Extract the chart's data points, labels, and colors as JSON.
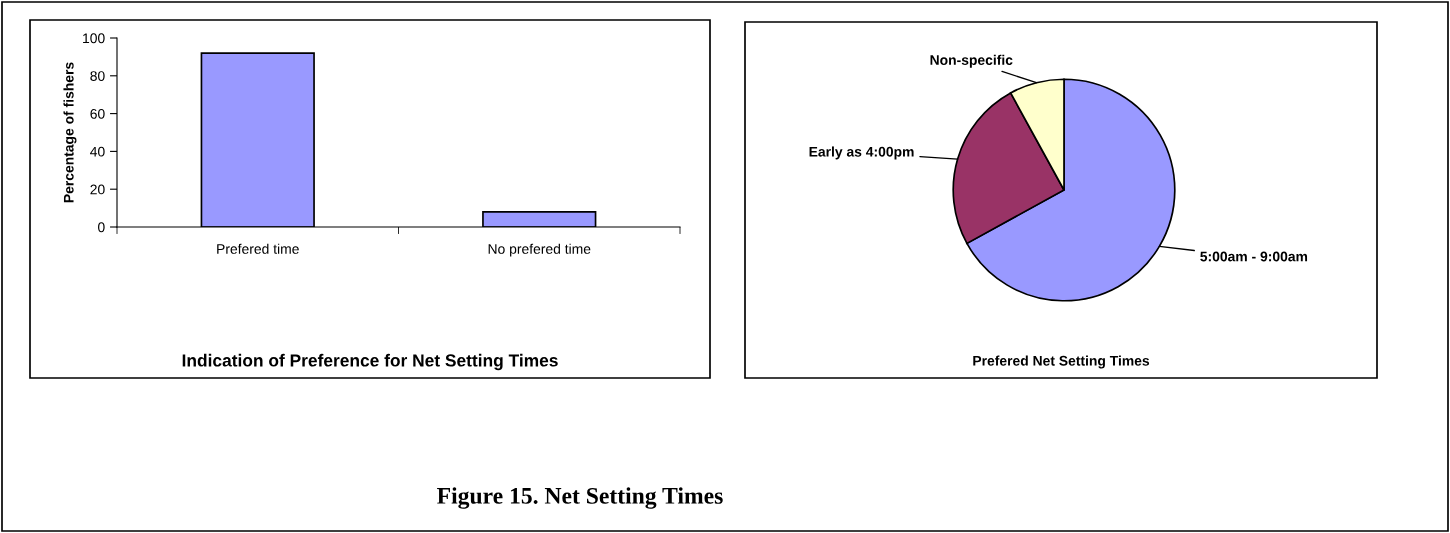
{
  "chart_data": [
    {
      "type": "bar",
      "title": "Indication of Preference for Net Setting Times",
      "ylabel": "Percentage of fishers",
      "categories": [
        "Prefered time",
        "No prefered time"
      ],
      "values": [
        92,
        8
      ],
      "color": "#9999ff",
      "ylim": [
        0,
        100
      ],
      "yticks": [
        0,
        20,
        40,
        60,
        80,
        100
      ],
      "grid": false,
      "legend": false,
      "annotations": [
        "Figure 15. Net Setting Times"
      ]
    },
    {
      "type": "pie",
      "title": "Prefered Net Setting Times",
      "categories": [
        "5:00am - 9:00am",
        "Early as 4:00pm",
        "Non-specific"
      ],
      "values": [
        67,
        25,
        8
      ],
      "colors": [
        "#9999ff",
        "#993366",
        "#ffffcc"
      ],
      "legend": false
    }
  ]
}
